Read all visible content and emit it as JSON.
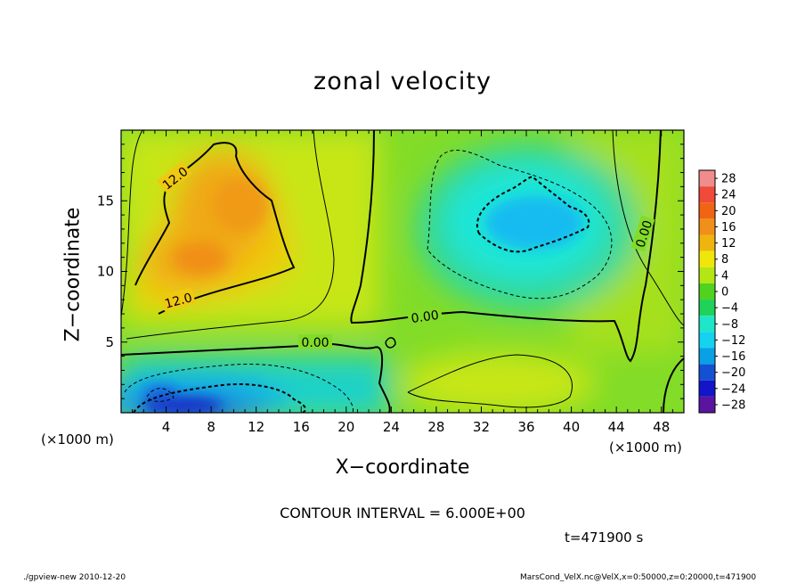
{
  "chart_data": {
    "type": "heatmap",
    "title": "zonal velocity",
    "xlabel": "X−coordinate",
    "ylabel": "Z−coordinate",
    "x_unit": "(×1000 m)",
    "xlim": [
      0,
      50
    ],
    "ylim": [
      0,
      20
    ],
    "x_ticks": [
      4,
      8,
      12,
      16,
      20,
      24,
      28,
      32,
      36,
      40,
      44,
      48
    ],
    "y_ticks": [
      5,
      10,
      15
    ],
    "colorbar": {
      "levels": [
        28,
        24,
        20,
        16,
        12,
        8,
        4,
        0,
        -4,
        -8,
        -12,
        -16,
        -20,
        -24,
        -28
      ],
      "labels": [
        "28",
        "24",
        "20",
        "16",
        "12",
        "8",
        "4",
        "0",
        "−4",
        "−8",
        "−12",
        "−16",
        "−20",
        "−24",
        "−28"
      ],
      "colors": [
        "#f08c8c",
        "#f04a3a",
        "#f06414",
        "#f0901a",
        "#f0b40f",
        "#f0e60a",
        "#b4e614",
        "#50d21e",
        "#1ed25a",
        "#1ee6c8",
        "#14d2f0",
        "#0aa0e6",
        "#1450d2",
        "#1414c8",
        "#5a14a0"
      ]
    },
    "contour_labels": [
      "12.0",
      "12.0",
      "0.00",
      "0.00",
      "0.00"
    ],
    "contour_interval": "CONTOUR INTERVAL = 6.000E+00",
    "time": "t=471900 s",
    "field_features": [
      {
        "name": "positive core",
        "x": 9,
        "z": 13,
        "value": 16
      },
      {
        "name": "negative core",
        "x": 37,
        "z": 14,
        "value": -10
      },
      {
        "name": "surface negative core",
        "x": 7,
        "z": 0.5,
        "value": -22
      },
      {
        "name": "low positive band",
        "x": 36,
        "z": 2,
        "value": 6
      }
    ]
  },
  "footer": {
    "left": "./gpview-new  2010-12-20",
    "right": "MarsCond_VelX.nc@VelX,x=0:50000,z=0:20000,t=471900"
  }
}
